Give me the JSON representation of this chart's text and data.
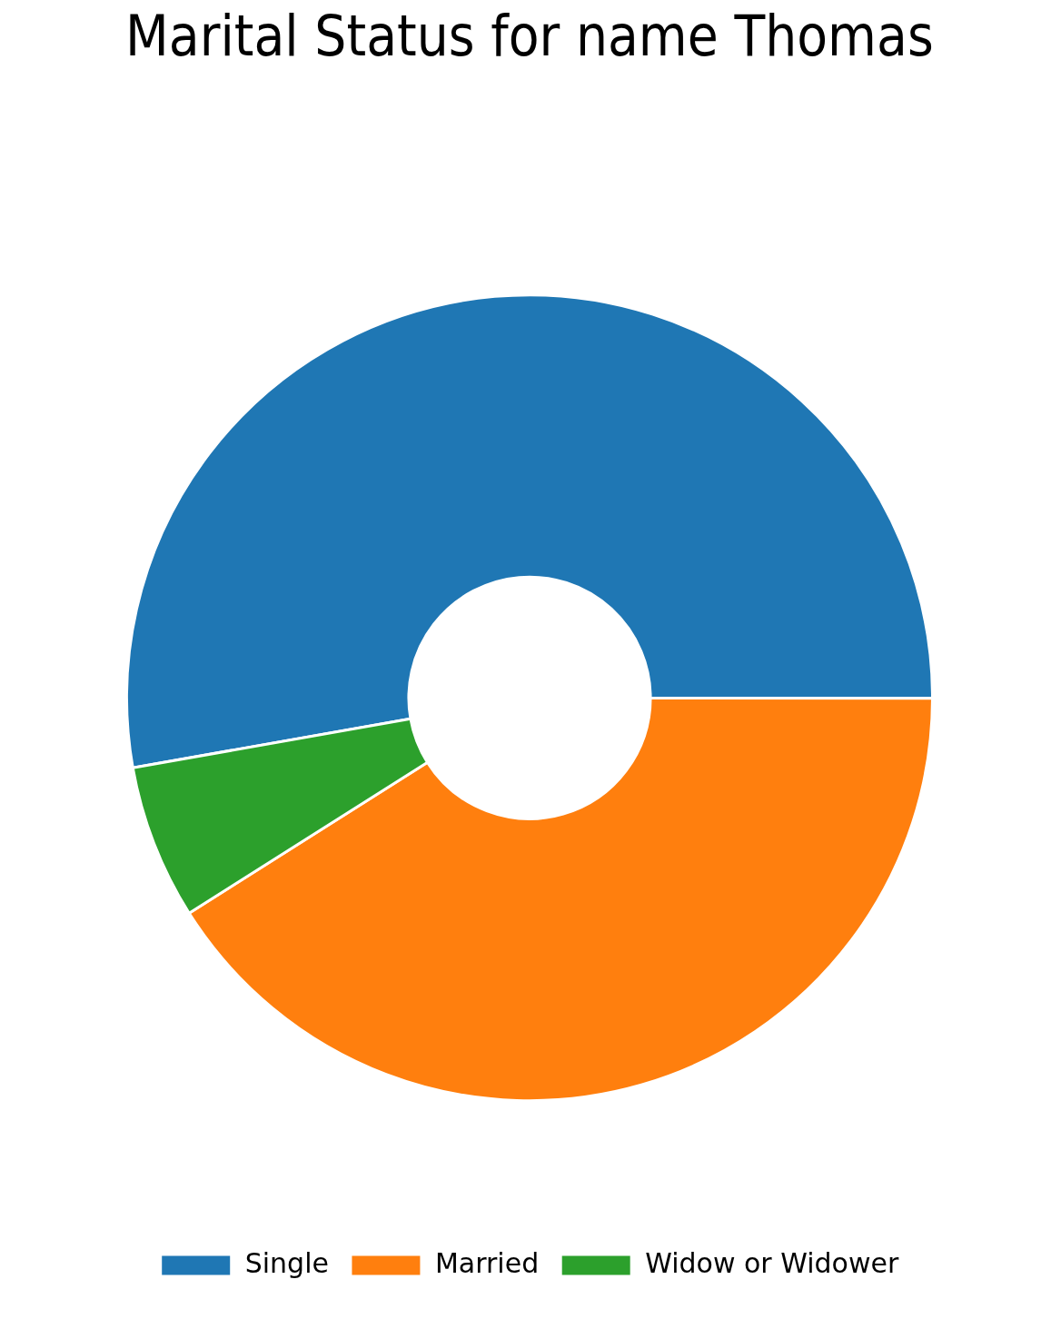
{
  "chart_data": {
    "type": "donut",
    "title": "Marital Status for name Thomas",
    "categories": [
      "Single",
      "Married",
      "Widow or Widower"
    ],
    "values": [
      52.8,
      41.0,
      6.2
    ],
    "colors": [
      "#1f77b4",
      "#ff7f0e",
      "#2ca02c"
    ],
    "legend": "bottom"
  }
}
